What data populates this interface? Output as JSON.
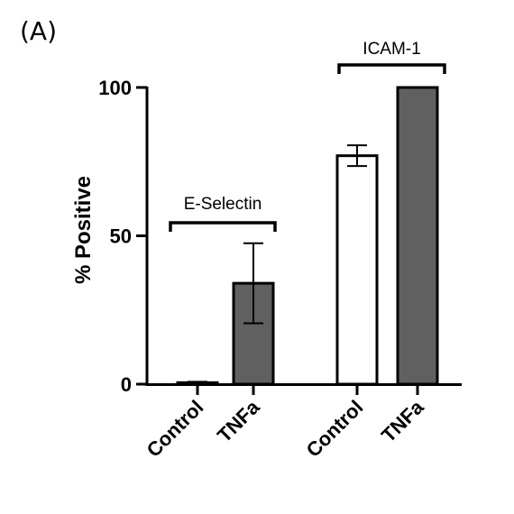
{
  "panel_label": "(A)",
  "chart_data": {
    "type": "bar",
    "title": "",
    "ylabel": "% Positive",
    "xlabel": "",
    "ylim": [
      0,
      100
    ],
    "yticks": [
      0,
      50,
      100
    ],
    "grid": false,
    "groups": [
      {
        "name": "E-Selectin",
        "categories": [
          "Control",
          "TNFa"
        ]
      },
      {
        "name": "ICAM-1",
        "categories": [
          "Control",
          "TNFa"
        ]
      }
    ],
    "bars": [
      {
        "group": "E-Selectin",
        "category": "Control",
        "value": 0.5,
        "error": 0.3,
        "color": "#ffffff"
      },
      {
        "group": "E-Selectin",
        "category": "TNFa",
        "value": 34,
        "error": 13.5,
        "color": "#606060"
      },
      {
        "group": "ICAM-1",
        "category": "Control",
        "value": 77,
        "error": 3.5,
        "color": "#ffffff"
      },
      {
        "group": "ICAM-1",
        "category": "TNFa",
        "value": 100,
        "error": 0,
        "color": "#606060"
      }
    ]
  }
}
